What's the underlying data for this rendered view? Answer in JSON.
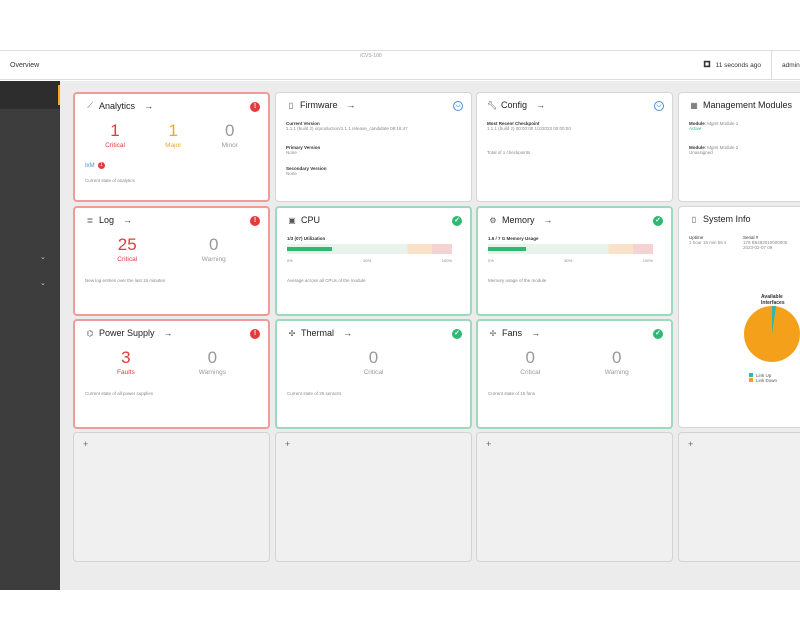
{
  "header": {
    "breadcrumb": "Overview",
    "center_title": "/CVS-100",
    "refresh_icon": "clock-icon",
    "refresh_text": "11 seconds ago",
    "user": "admin"
  },
  "widgets": {
    "analytics": {
      "title": "Analytics",
      "critical": "1",
      "critical_label": "Critical",
      "major": "1",
      "major_label": "Major",
      "minor": "0",
      "minor_label": "Minor",
      "badge_label": "IxM",
      "badge_count": "1",
      "desc": "Current state of analytics"
    },
    "firmware": {
      "title": "Firmware",
      "current_label": "Current Version",
      "current_value": "1.1.1 (build 2) xrproduction/1.1.1 release_candidate 08:16:47",
      "primary_label": "Primary Version",
      "primary_value": "None",
      "secondary_label": "Secondary Version",
      "secondary_value": "None"
    },
    "config": {
      "title": "Config",
      "recent_label": "Most Recent Checkpoint",
      "recent_value": "1.1.1 (build 2) 00:00:00 1/2/2023 00:00:00",
      "total": "Total of 1 checkpoints"
    },
    "management": {
      "title": "Management Modules",
      "m1_label": "Module",
      "m1_value": "Mgmt Module 1",
      "m1_status": "Active",
      "m2_label": "Module",
      "m2_value": "Mgmt Module 2",
      "m2_status": "Unassigned"
    },
    "log": {
      "title": "Log",
      "critical": "25",
      "critical_label": "Critical",
      "warning": "0",
      "warning_label": "Warning",
      "desc": "New log entries over the last 15 minutes"
    },
    "cpu": {
      "title": "CPU",
      "bar_title": "1/3 (07) Utilization",
      "percent": 27,
      "ticks": [
        "0%",
        "50%",
        "100%"
      ],
      "desc": "Average across all CPUs of the module"
    },
    "memory": {
      "title": "Memory",
      "bar_title": "1.6 / 7 G Memory Usage",
      "percent": 23,
      "ticks": [
        "0%",
        "50%",
        "100%"
      ],
      "desc": "Memory usage of the module"
    },
    "sysinfo": {
      "title": "System Info",
      "c1_label": "Uptime",
      "c1_value": "1 hour 15 min 56 s",
      "c2_label": "Serial #",
      "c2_value": "178 B6482010000000",
      "c3_value": "2023-02-07 09",
      "pie_title": "Available Interfaces",
      "legend_up": "Link Up",
      "legend_down": "Link Down",
      "color_up": "#2eb8a6",
      "color_down": "#f5a01a"
    },
    "power": {
      "title": "Power Supply",
      "faults": "3",
      "faults_label": "Faults",
      "warnings": "0",
      "warnings_label": "Warnings",
      "desc": "Current state of all power supplies"
    },
    "thermal": {
      "title": "Thermal",
      "critical": "0",
      "critical_label": "Critical",
      "desc": "Current state of 25 sensors"
    },
    "fans": {
      "title": "Fans",
      "critical": "0",
      "critical_label": "Critical",
      "warning": "0",
      "warning_label": "Warning",
      "desc": "Current state of 15 fans"
    },
    "add": "+"
  }
}
